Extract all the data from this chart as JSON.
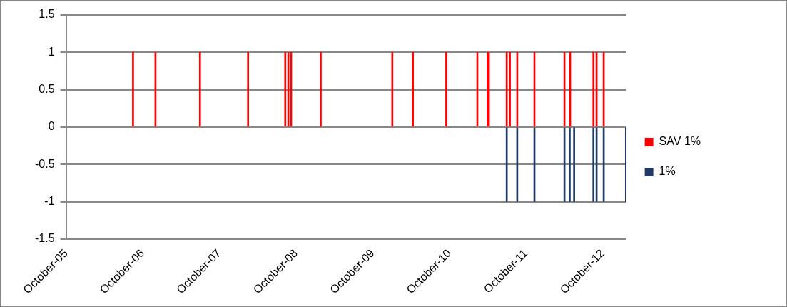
{
  "chart_data": {
    "type": "bar",
    "xlim": [
      "2005-10-01",
      "2013-01-20"
    ],
    "xticks": [
      {
        "value": "2005-10-01",
        "label": "October-05"
      },
      {
        "value": "2006-10-01",
        "label": "October-06"
      },
      {
        "value": "2007-10-01",
        "label": "October-07"
      },
      {
        "value": "2008-10-01",
        "label": "October-08"
      },
      {
        "value": "2009-10-01",
        "label": "October-09"
      },
      {
        "value": "2010-10-01",
        "label": "October-10"
      },
      {
        "value": "2011-10-01",
        "label": "October-11"
      },
      {
        "value": "2012-10-01",
        "label": "October-12"
      }
    ],
    "ylim": [
      -1.5,
      1.5
    ],
    "yticks": [
      -1.5,
      -1,
      -0.5,
      0,
      0.5,
      1,
      1.5
    ],
    "grid": "y",
    "legend": "right",
    "series": [
      {
        "name": "SAV 1%",
        "color": "#ff0000",
        "x": [
          "2006-08-16",
          "2006-12-01",
          "2007-07-01",
          "2008-02-15",
          "2008-08-10",
          "2008-08-25",
          "2008-09-07",
          "2009-01-26",
          "2010-01-02",
          "2010-04-10",
          "2010-09-16",
          "2011-02-11",
          "2011-04-01",
          "2011-04-07",
          "2011-07-01",
          "2011-07-16",
          "2011-08-20",
          "2011-11-10",
          "2012-04-01",
          "2012-04-28",
          "2012-08-17",
          "2012-09-01",
          "2012-10-05"
        ],
        "values": [
          1,
          1,
          1,
          1,
          1,
          1,
          1,
          1,
          1,
          1,
          1,
          1,
          1,
          1,
          1,
          1,
          1,
          1,
          1,
          1,
          1,
          1,
          1
        ]
      },
      {
        "name": "1%",
        "color": "#1f3a64",
        "x": [
          "2011-07-01",
          "2011-08-20",
          "2011-11-10",
          "2012-04-01",
          "2012-04-26",
          "2012-05-17",
          "2012-08-17",
          "2012-09-01",
          "2012-10-05",
          "2013-01-19"
        ],
        "values": [
          -1,
          -1,
          -1,
          -1,
          -1,
          -1,
          -1,
          -1,
          -1,
          -1
        ]
      }
    ]
  }
}
